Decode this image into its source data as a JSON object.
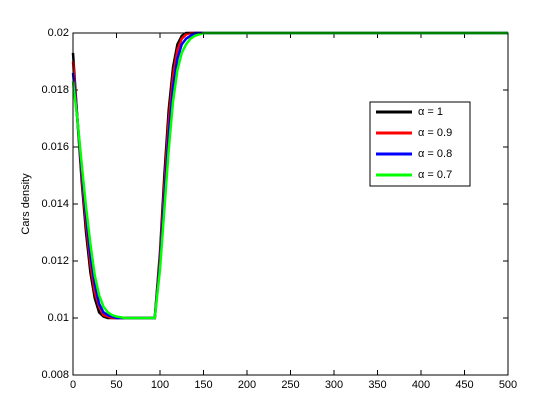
{
  "chart_data": {
    "type": "line",
    "ylabel": "Cars density",
    "x": [
      0,
      5,
      10,
      15,
      20,
      25,
      30,
      35,
      40,
      45,
      50,
      60,
      70,
      80,
      90,
      94,
      100,
      105,
      110,
      115,
      120,
      125,
      130,
      135,
      140,
      145,
      150,
      160,
      200,
      300,
      400,
      500
    ],
    "series": [
      {
        "name": "α = 1",
        "color": "#000000",
        "values": [
          0.0193,
          0.017,
          0.0148,
          0.013,
          0.0116,
          0.0107,
          0.0102,
          0.01005,
          0.01,
          0.01,
          0.01,
          0.01,
          0.01,
          0.01,
          0.01,
          0.01,
          0.0123,
          0.015,
          0.0173,
          0.0188,
          0.0196,
          0.0199,
          0.02,
          0.02,
          0.02,
          0.02,
          0.02,
          0.02,
          0.02,
          0.02,
          0.02,
          0.02
        ]
      },
      {
        "name": "α = 0.9",
        "color": "#ff0000",
        "values": [
          0.019,
          0.017,
          0.015,
          0.0133,
          0.0119,
          0.0109,
          0.0104,
          0.0101,
          0.01005,
          0.01,
          0.01,
          0.01,
          0.01,
          0.01,
          0.01,
          0.01,
          0.0121,
          0.0146,
          0.0169,
          0.0185,
          0.0194,
          0.0198,
          0.01995,
          0.02,
          0.02,
          0.02,
          0.02,
          0.02,
          0.02,
          0.02,
          0.02,
          0.02
        ]
      },
      {
        "name": "α = 0.8",
        "color": "#0000ff",
        "values": [
          0.0186,
          0.017,
          0.0152,
          0.0136,
          0.0122,
          0.0112,
          0.0105,
          0.0102,
          0.0101,
          0.01005,
          0.01,
          0.01,
          0.01,
          0.01,
          0.01,
          0.01,
          0.0119,
          0.0142,
          0.0164,
          0.0181,
          0.0191,
          0.0196,
          0.0198,
          0.0199,
          0.02,
          0.02,
          0.02,
          0.02,
          0.02,
          0.02,
          0.02,
          0.02
        ]
      },
      {
        "name": "α = 0.7",
        "color": "#00ff00",
        "values": [
          0.0183,
          0.017,
          0.0154,
          0.0139,
          0.0126,
          0.0115,
          0.0108,
          0.0104,
          0.0102,
          0.0101,
          0.01005,
          0.01,
          0.01,
          0.01,
          0.01,
          0.01,
          0.0117,
          0.0138,
          0.0159,
          0.0176,
          0.0187,
          0.0193,
          0.0196,
          0.0198,
          0.0199,
          0.01995,
          0.02,
          0.02,
          0.02,
          0.02,
          0.02,
          0.02
        ]
      }
    ],
    "xlim": [
      0,
      500
    ],
    "xticks": [
      0,
      50,
      100,
      150,
      200,
      250,
      300,
      350,
      400,
      450,
      500
    ],
    "ylim": [
      0.008,
      0.02
    ],
    "yticks": [
      0.008,
      0.01,
      0.012,
      0.014,
      0.016,
      0.018,
      0.02
    ],
    "legend": "northeast",
    "grid": false
  }
}
